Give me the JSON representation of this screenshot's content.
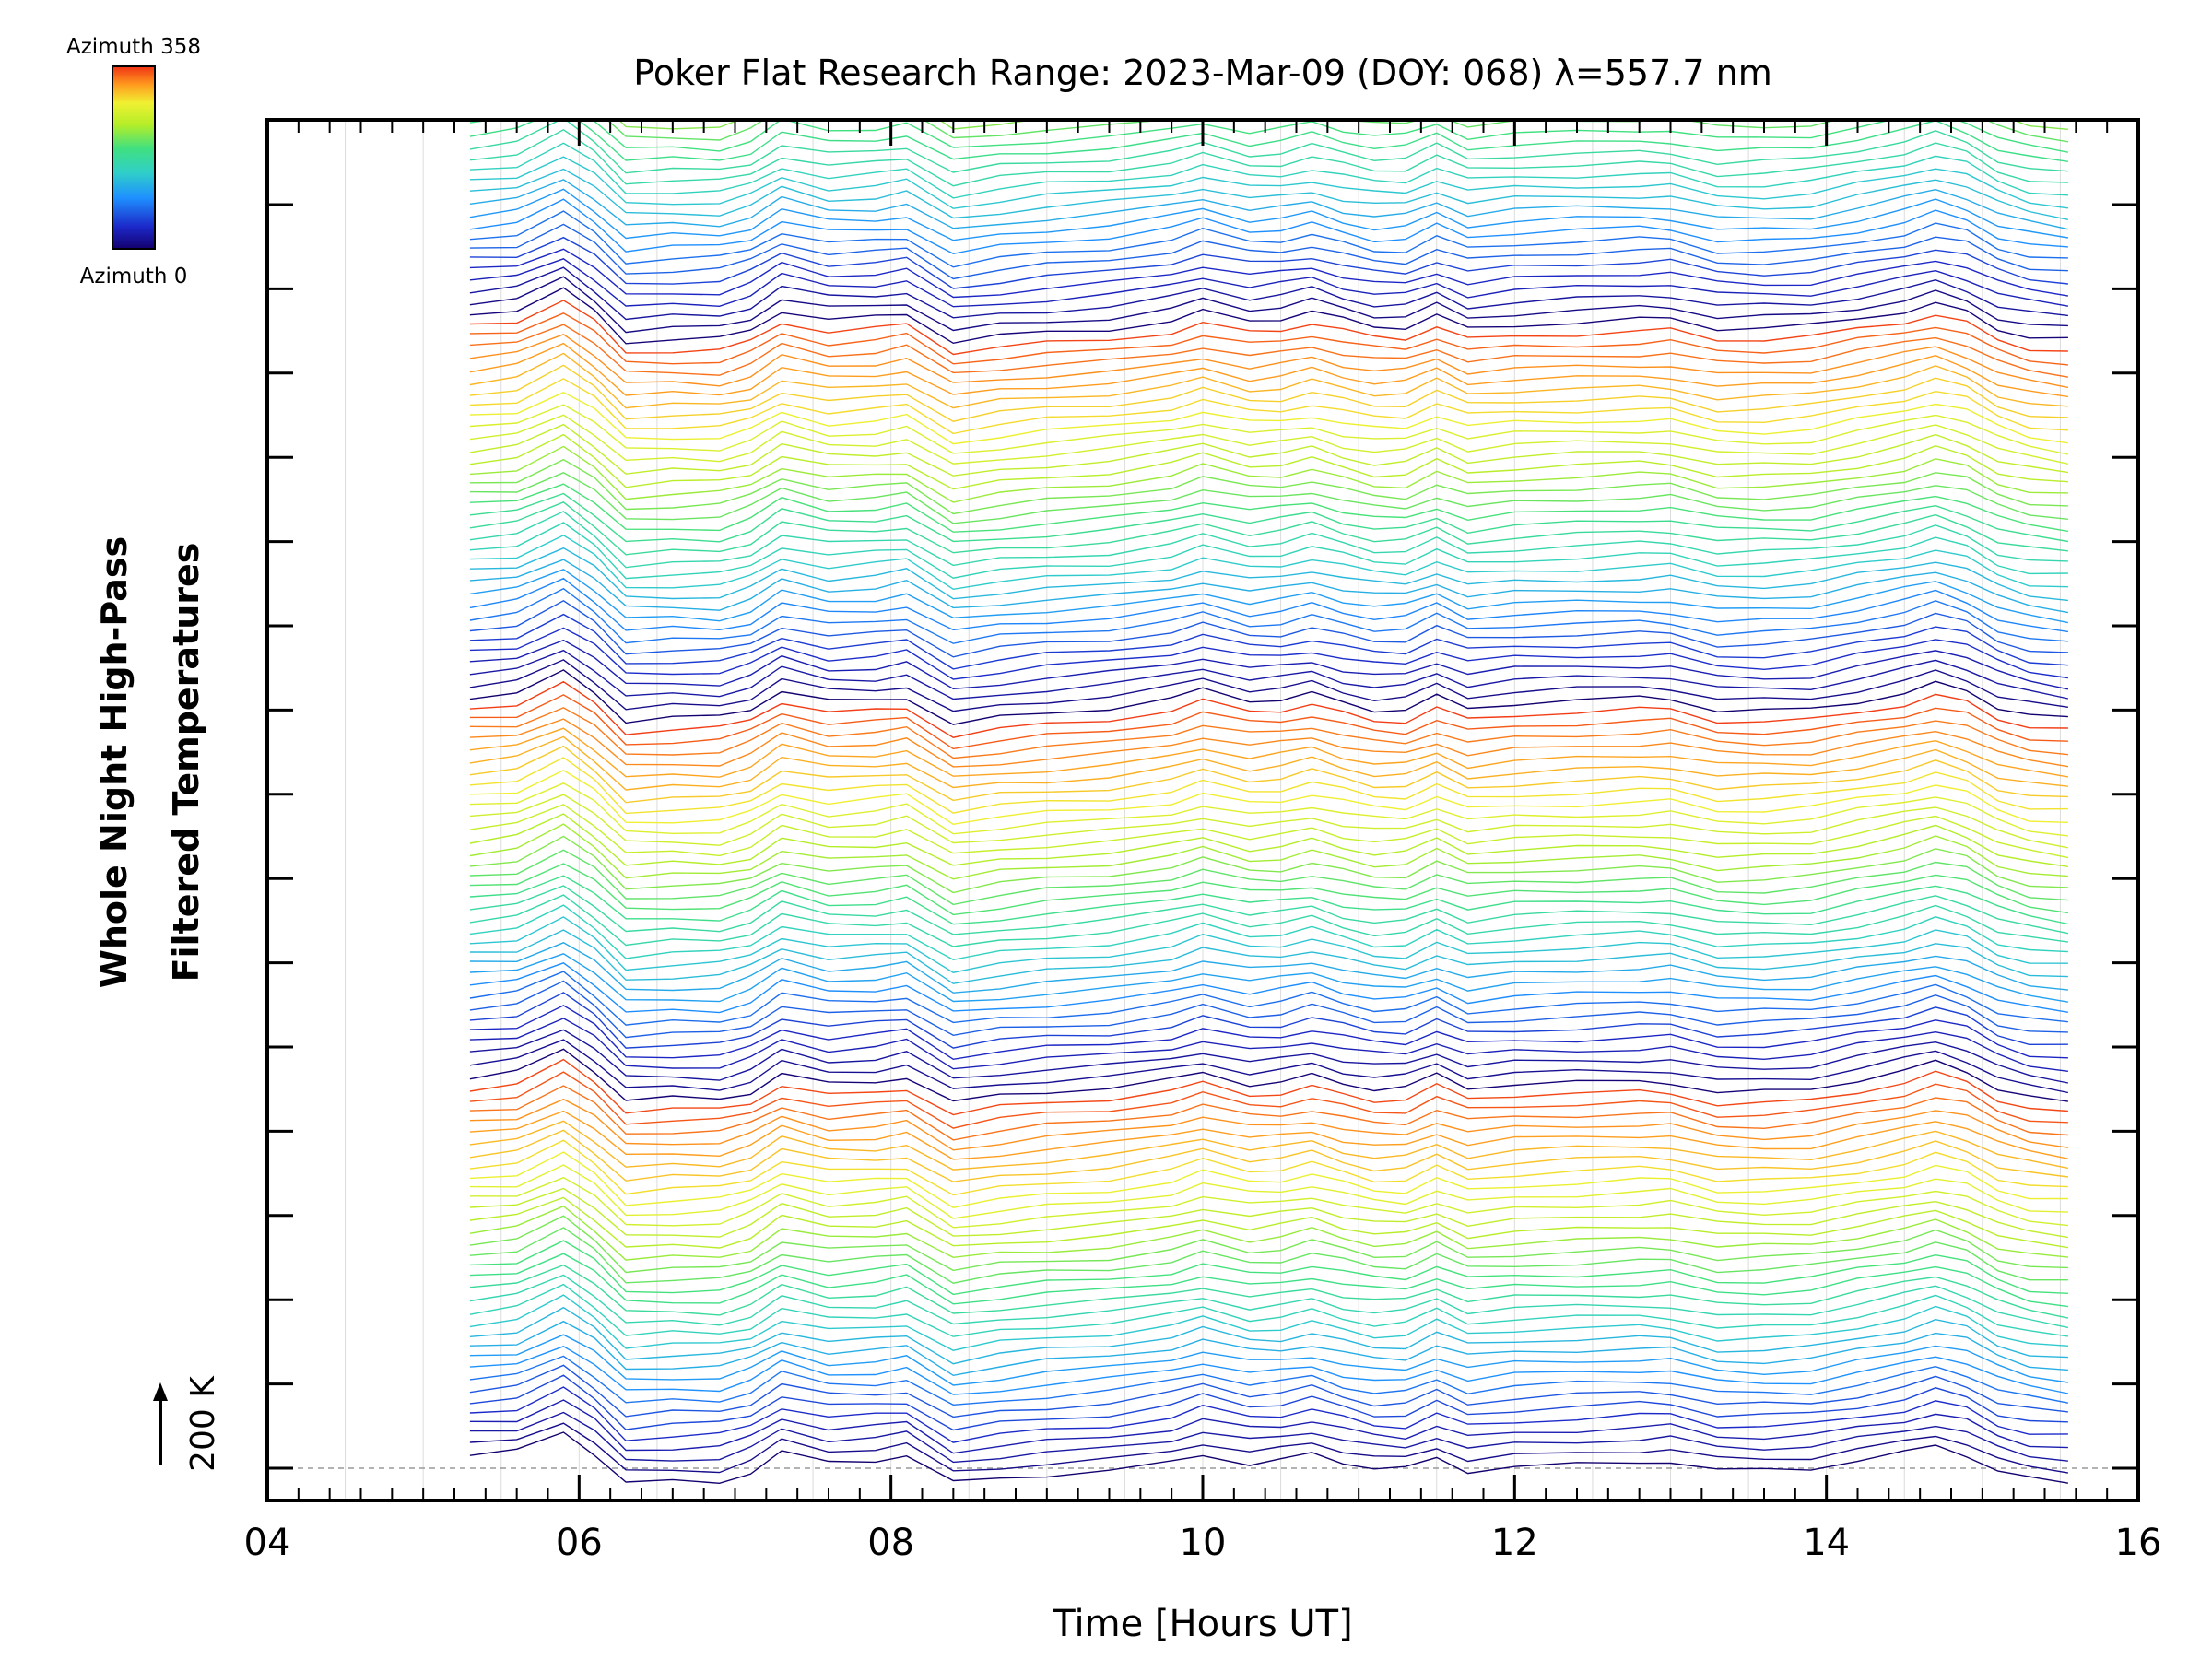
{
  "chart_data": {
    "type": "line",
    "title": "Poker Flat Research Range: 2023-Mar-09 (DOY: 068) λ=557.7 nm",
    "xlabel": "Time [Hours UT]",
    "ylabel_line1": "Whole Night High-Pass",
    "ylabel_line2": "Filtered Temperatures",
    "scale_label": "200 K",
    "xlim": [
      4,
      16
    ],
    "x_ticks": [
      "04",
      "06",
      "08",
      "10",
      "12",
      "14",
      "16"
    ],
    "colorbar": {
      "top_label": "Azimuth 358",
      "bottom_label": "Azimuth 0",
      "colormap": [
        "#14006e",
        "#1c28c8",
        "#1e90ff",
        "#30d0c8",
        "#40e080",
        "#b4ee28",
        "#f0f032",
        "#ff9a1e",
        "#f03214"
      ]
    },
    "series_description_x": [
      5.3,
      5.6,
      5.9,
      6.1,
      6.3,
      6.6,
      6.9,
      7.1,
      7.3,
      7.6,
      7.9,
      8.1,
      8.4,
      8.7,
      9.0,
      9.4,
      9.8,
      10.0,
      10.3,
      10.5,
      10.7,
      10.9,
      11.1,
      11.3,
      11.5,
      11.7,
      12.0,
      12.4,
      12.8,
      13.0,
      13.3,
      13.6,
      13.9,
      14.2,
      14.5,
      14.7,
      14.9,
      15.1,
      15.3,
      15.55
    ],
    "profile_shape_K": [
      0,
      10,
      60,
      10,
      -60,
      -55,
      -55,
      -35,
      10,
      -15,
      -10,
      0,
      -65,
      -50,
      -40,
      -30,
      -10,
      10,
      -15,
      -10,
      5,
      -15,
      -30,
      -30,
      0,
      -30,
      -20,
      -15,
      -10,
      -10,
      -35,
      -35,
      -30,
      -10,
      10,
      30,
      10,
      -30,
      -50,
      -60
    ],
    "num_series": 160,
    "offset_K_per_series": 27
  }
}
